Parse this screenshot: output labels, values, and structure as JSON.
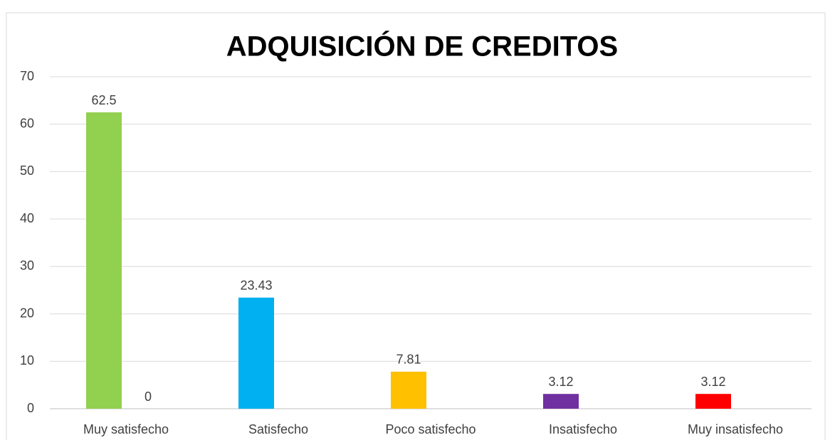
{
  "chart_data": {
    "type": "bar",
    "title": "ADQUISICIÓN DE CREDITOS",
    "categories": [
      "Muy satisfecho",
      "Satisfecho",
      "Poco satisfecho",
      "Insatisfecho",
      "Muy insatisfecho"
    ],
    "series": [
      {
        "colors": [
          "#92d050",
          "#00b0f0",
          "#ffc000",
          "#7030a0",
          "#ff0000"
        ],
        "values": [
          62.5,
          23.43,
          7.81,
          3.12,
          3.12
        ]
      },
      {
        "color": "#4472c4",
        "values": [
          0,
          null,
          null,
          null,
          null
        ]
      }
    ],
    "ylim": [
      0,
      70
    ],
    "yticks": [
      0,
      10,
      20,
      30,
      40,
      50,
      60,
      70
    ],
    "grid": true
  }
}
